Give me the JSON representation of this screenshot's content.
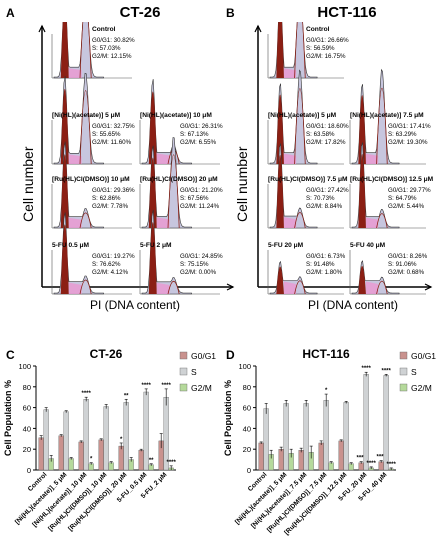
{
  "figure": {
    "panels": {
      "A": {
        "label": "A",
        "title": "CT-26",
        "ylabel": "Cell number",
        "xlabel": "PI (DNA content)",
        "histograms": [
          {
            "name": "Control",
            "g0g1": "G0/G1: 30.82%",
            "s": "S: 57.03%",
            "g2m": "G2/M: 12.15%"
          },
          {
            "name": "[Ni(HL)(acetate)] 5 μM",
            "g0g1": "G0/G1: 32.75%",
            "s": "S: 55.65%",
            "g2m": "G2/M: 11.60%"
          },
          {
            "name": "[Ni(HL)(acetate)] 10 μM",
            "g0g1": "G0/G1: 26.31%",
            "s": "S: 67.13%",
            "g2m": "G2/M: 6.55%"
          },
          {
            "name": "[Ru(HL)Cl(DMSO)] 10 μM",
            "g0g1": "G0/G1: 29.36%",
            "s": "S: 62.86%",
            "g2m": "G2/M: 7.78%"
          },
          {
            "name": "[Ru(HL)Cl(DMSO)] 20 μM",
            "g0g1": "G0/G1: 21.20%",
            "s": "S: 67.56%",
            "g2m": "G2/M: 11.24%"
          },
          {
            "name": "5-FU 0.5 μM",
            "g0g1": "G0/G1: 19.27%",
            "s": "S: 76.62%",
            "g2m": "G2/M: 4.12%"
          },
          {
            "name": "5-FU 2 μM",
            "g0g1": "G0/G1: 24.85%",
            "s": "S: 75.15%",
            "g2m": "G2/M: 0.00%"
          }
        ]
      },
      "B": {
        "label": "B",
        "title": "HCT-116",
        "ylabel": "Cell number",
        "xlabel": "PI (DNA content)",
        "histograms": [
          {
            "name": "Control",
            "g0g1": "G0/G1: 26.66%",
            "s": "S: 56.59%",
            "g2m": "G2/M: 16.75%"
          },
          {
            "name": "[Ni(HL)(acetate)] 5 μM",
            "g0g1": "G0/G1: 18.60%",
            "s": "S: 63.58%",
            "g2m": "G2/M: 17.82%"
          },
          {
            "name": "[Ni(HL)(acetate)] 7.5 μM",
            "g0g1": "G0/G1: 17.41%",
            "s": "S: 63.29%",
            "g2m": "G2/M: 19.30%"
          },
          {
            "name": "[Ru(HL)Cl(DMSO)] 7.5 μM",
            "g0g1": "G0/G1: 27.42%",
            "s": "S: 70.73%",
            "g2m": "G2/M: 8.84%"
          },
          {
            "name": "[Ru(HL)Cl(DMSO)] 12.5 μM",
            "g0g1": "G0/G1: 29.77%",
            "s": "S: 64.79%",
            "g2m": "G2/M: 5.44%"
          },
          {
            "name": "5-FU 20 μM",
            "g0g1": "G0/G1: 6.73%",
            "s": "S: 91.48%",
            "g2m": "G2/M: 1.80%"
          },
          {
            "name": "5-FU 40 μM",
            "g0g1": "G0/G1: 8.26%",
            "s": "S: 91.06%",
            "g2m": "G2/M: 0.68%"
          }
        ]
      },
      "C": {
        "label": "C"
      },
      "D": {
        "label": "D"
      }
    }
  },
  "colors": {
    "g0g1": "#c9928e",
    "s": "#cfd2d4",
    "g2m": "#b5d99b",
    "hist_g0": "#8b1f14",
    "hist_s": "#e99ad2",
    "hist_fill": "#c7c6de",
    "axis": "#000000"
  },
  "chart_data": [
    {
      "type": "bar",
      "panel": "C",
      "title": "CT-26",
      "xlabel": "",
      "ylabel": "Cell Population %",
      "ylim": [
        0,
        100
      ],
      "yticks": [
        0,
        20,
        40,
        60,
        80,
        100
      ],
      "legend": [
        "G0/G1",
        "S",
        "G2/M"
      ],
      "legend_position": "top-right",
      "grid": false,
      "categories": [
        "Control",
        "[Ni(HL)(acetate)]_5 μM",
        "[Ni(HL)(acetate)]_10 μM",
        "[Ru(HL)Cl(DMSO)]_10 μM",
        "[Ru(HL)Cl(DMSO)]_20 μM",
        "5-FU_0.5 μM",
        "5-FU_2 μM"
      ],
      "series": [
        {
          "name": "G0/G1",
          "values": [
            31,
            33,
            27,
            29,
            23,
            19,
            28
          ],
          "errors": [
            2,
            1,
            1,
            1,
            3,
            1,
            7
          ],
          "sig": [
            "",
            "",
            "",
            "",
            "*",
            "",
            ""
          ]
        },
        {
          "name": "S",
          "values": [
            58,
            56,
            68,
            61,
            65,
            75,
            70
          ],
          "errors": [
            2,
            1,
            2,
            2,
            3,
            3,
            8
          ],
          "sig": [
            "",
            "",
            "****",
            "",
            "**",
            "****",
            "****"
          ]
        },
        {
          "name": "G2/M",
          "values": [
            11,
            11,
            6,
            7,
            10,
            5,
            2
          ],
          "errors": [
            3,
            1,
            1,
            1,
            2,
            1,
            2
          ],
          "sig": [
            "",
            "",
            "*",
            "",
            "",
            "**",
            "****"
          ]
        }
      ]
    },
    {
      "type": "bar",
      "panel": "D",
      "title": "HCT-116",
      "xlabel": "",
      "ylabel": "Cell Population %",
      "ylim": [
        0,
        100
      ],
      "yticks": [
        0,
        20,
        40,
        60,
        80,
        100
      ],
      "legend": [
        "G0/G1",
        "S",
        "G2/M"
      ],
      "legend_position": "top-right",
      "grid": false,
      "categories": [
        "Control",
        "[Ni(HL)(acetate)]_5 μM",
        "[Ni(HL)(acetate)]_7.5 μM",
        "[Ru(HL)Cl(DMSO)]_7.5 μM",
        "[Ru(HL)Cl(DMSO)]_12.5 μM",
        "5-FU_20 μM",
        "5-FU_40 μM"
      ],
      "series": [
        {
          "name": "G0/G1",
          "values": [
            26,
            20,
            19,
            26,
            28,
            7,
            8
          ],
          "errors": [
            1,
            2,
            2,
            2,
            1,
            1,
            1
          ],
          "sig": [
            "",
            "",
            "",
            "",
            "",
            "****",
            "****"
          ]
        },
        {
          "name": "S",
          "values": [
            59,
            64,
            64,
            67,
            65,
            92,
            91
          ],
          "errors": [
            5,
            3,
            3,
            6,
            1,
            2,
            1
          ],
          "sig": [
            "",
            "",
            "",
            "*",
            "",
            "****",
            "****"
          ]
        },
        {
          "name": "G2/M",
          "values": [
            15,
            16,
            17,
            7,
            6,
            2,
            1
          ],
          "errors": [
            4,
            4,
            6,
            1,
            1,
            1,
            1
          ],
          "sig": [
            "",
            "",
            "",
            "",
            "",
            "****",
            "****"
          ]
        }
      ]
    }
  ]
}
